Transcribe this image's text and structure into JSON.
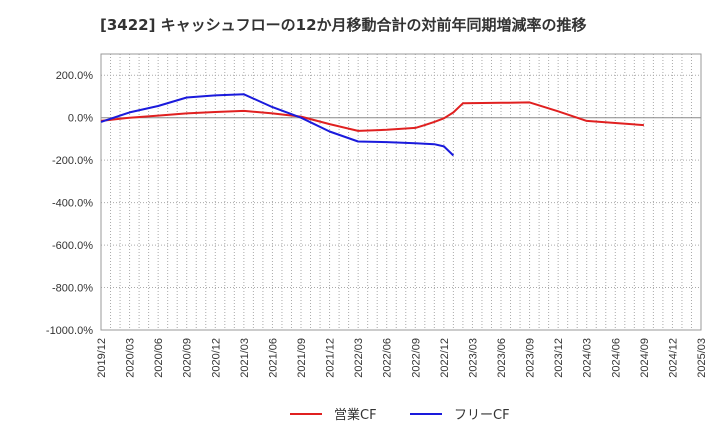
{
  "chart_data": {
    "type": "line",
    "title": "[3422]  キャッシュフローの12か月移動合計の対前年同期増減率の推移",
    "xlabel": "",
    "ylabel": "",
    "ylim": [
      -1000,
      300
    ],
    "y_ticks": [
      200,
      0,
      -200,
      -400,
      -600,
      -800,
      -1000
    ],
    "y_tick_labels": [
      "200.0%",
      "0.0%",
      "-200.0%",
      "-400.0%",
      "-600.0%",
      "-800.0%",
      "-1000.0%"
    ],
    "x_ticks": [
      "2019/12",
      "2020/03",
      "2020/06",
      "2020/09",
      "2020/12",
      "2021/03",
      "2021/06",
      "2021/09",
      "2021/12",
      "2022/03",
      "2022/06",
      "2022/09",
      "2022/12",
      "2023/03",
      "2023/06",
      "2023/09",
      "2023/12",
      "2024/03",
      "2024/06",
      "2024/09",
      "2024/12",
      "2025/03"
    ],
    "grid": true,
    "legend_position": "bottom",
    "series": [
      {
        "name": "営業CF",
        "color": "#e02020",
        "points": [
          [
            "2019/12",
            -15
          ],
          [
            "2020/03",
            0
          ],
          [
            "2020/06",
            10
          ],
          [
            "2020/09",
            20
          ],
          [
            "2020/12",
            27
          ],
          [
            "2021/03",
            32
          ],
          [
            "2021/06",
            20
          ],
          [
            "2021/09",
            5
          ],
          [
            "2021/12",
            -30
          ],
          [
            "2022/03",
            -62
          ],
          [
            "2022/06",
            -57
          ],
          [
            "2022/09",
            -48
          ],
          [
            "2022/10",
            -35
          ],
          [
            "2022/11",
            -20
          ],
          [
            "2022/12",
            -3
          ],
          [
            "2023/01",
            25
          ],
          [
            "2023/02",
            68
          ],
          [
            "2023/06",
            70
          ],
          [
            "2023/09",
            72
          ],
          [
            "2023/12",
            30
          ],
          [
            "2024/03",
            -15
          ],
          [
            "2024/06",
            -25
          ],
          [
            "2024/09",
            -35
          ]
        ]
      },
      {
        "name": "フリーCF",
        "color": "#1a1adc",
        "points": [
          [
            "2019/12",
            -20
          ],
          [
            "2020/03",
            25
          ],
          [
            "2020/06",
            55
          ],
          [
            "2020/09",
            95
          ],
          [
            "2020/12",
            105
          ],
          [
            "2021/03",
            110
          ],
          [
            "2021/06",
            50
          ],
          [
            "2021/09",
            0
          ],
          [
            "2021/12",
            -65
          ],
          [
            "2022/03",
            -112
          ],
          [
            "2022/06",
            -115
          ],
          [
            "2022/09",
            -120
          ],
          [
            "2022/11",
            -125
          ],
          [
            "2022/12",
            -135
          ],
          [
            "2023/01",
            -178
          ]
        ]
      }
    ]
  }
}
